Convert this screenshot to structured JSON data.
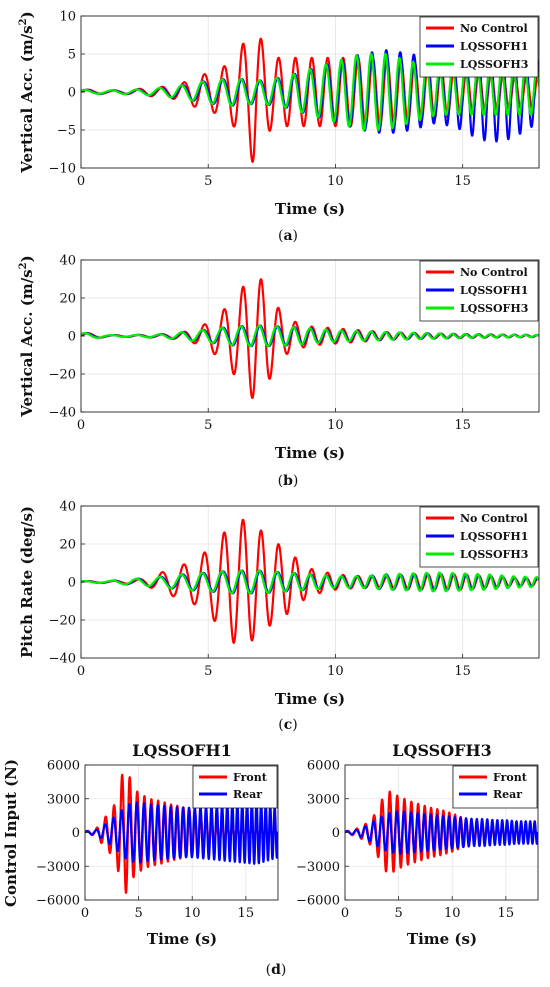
{
  "chart_data": [
    {
      "type": "line",
      "panel_label": "(a)",
      "title": "",
      "xlabel": "Time (s)",
      "ylabel": "Vertical Acc. (m/s²)",
      "xlim": [
        0,
        18
      ],
      "ylim": [
        -10,
        10
      ],
      "xticks": [
        0,
        5,
        10,
        15
      ],
      "yticks": [
        -10,
        -5,
        0,
        5,
        10
      ],
      "grid": true,
      "legend": "top-right",
      "series": [
        {
          "name": "No Control",
          "color": "#ff0000",
          "t": [
            0,
            0.5,
            1,
            1.5,
            2,
            2.5,
            3,
            3.5,
            4,
            4.5,
            5,
            5.5,
            6,
            6.3,
            6.6,
            6.8,
            7,
            7.3,
            7.6,
            8,
            9,
            10,
            11,
            12,
            13,
            14,
            15,
            16,
            17,
            18
          ],
          "amp": [
            0.3,
            0.3,
            0.2,
            0.2,
            0.3,
            0.5,
            0.6,
            0.8,
            1.2,
            2.0,
            2.5,
            3.0,
            4.5,
            6.0,
            7.5,
            10,
            7.5,
            5.5,
            4.5,
            4.5,
            4.5,
            4.5,
            4.5,
            4.5,
            4.0,
            3.5,
            3.0,
            2.5,
            2.2,
            2.0
          ]
        },
        {
          "name": "LQSSOFH1",
          "color": "#0000ff",
          "t": [
            0,
            1,
            2,
            3,
            4,
            5,
            6,
            7,
            8,
            9,
            10,
            11,
            12,
            13,
            14,
            15,
            15.5,
            16,
            16.5,
            17,
            18
          ],
          "amp": [
            0.3,
            0.2,
            0.3,
            0.5,
            0.9,
            1.5,
            1.8,
            1.5,
            2.0,
            3.0,
            4.0,
            5.0,
            5.5,
            5.0,
            4.0,
            5.0,
            6.0,
            6.5,
            6.5,
            6.0,
            4.0
          ]
        },
        {
          "name": "LQSSOFH3",
          "color": "#00ee00",
          "t": [
            0,
            1,
            2,
            3,
            4,
            5,
            6,
            7,
            8,
            9,
            10,
            11,
            12,
            13,
            14,
            15,
            16,
            17,
            18
          ],
          "amp": [
            0.3,
            0.2,
            0.3,
            0.5,
            0.9,
            1.5,
            1.8,
            1.5,
            2.0,
            3.0,
            4.0,
            5.0,
            5.0,
            4.0,
            3.0,
            3.0,
            3.0,
            3.0,
            3.0
          ]
        }
      ]
    },
    {
      "type": "line",
      "panel_label": "(b)",
      "title": "",
      "xlabel": "Time (s)",
      "ylabel": "Vertical Acc. (m/s²)",
      "xlim": [
        0,
        18
      ],
      "ylim": [
        -40,
        40
      ],
      "xticks": [
        0,
        5,
        10,
        15
      ],
      "yticks": [
        -40,
        -20,
        0,
        20,
        40
      ],
      "grid": true,
      "legend": "top-right",
      "series": [
        {
          "name": "No Control",
          "color": "#ff0000",
          "t": [
            0,
            0.3,
            1,
            2,
            3,
            3.5,
            4,
            4.5,
            5,
            5.5,
            6,
            6.5,
            6.8,
            7.2,
            7.6,
            8,
            8.5,
            9,
            10,
            11,
            12,
            13,
            15,
            18
          ],
          "amp": [
            1.5,
            1.5,
            0.5,
            0.5,
            0.8,
            1.2,
            2.0,
            4.0,
            7.0,
            12,
            20,
            28,
            34,
            28,
            18,
            10,
            7,
            5,
            4,
            3,
            2,
            1.5,
            1,
            0.5
          ]
        },
        {
          "name": "LQSSOFH1",
          "color": "#0000ff",
          "t": [
            0,
            0.3,
            1,
            2,
            3,
            4,
            5,
            6,
            7,
            8,
            9,
            10,
            12,
            15,
            18
          ],
          "amp": [
            1.5,
            1.5,
            0.5,
            0.5,
            0.8,
            2.0,
            3.5,
            5.0,
            5.5,
            5.0,
            4.0,
            3.0,
            2.0,
            1.0,
            0.5
          ]
        },
        {
          "name": "LQSSOFH3",
          "color": "#00ee00",
          "t": [
            0,
            0.3,
            1,
            2,
            3,
            4,
            5,
            6,
            7,
            8,
            9,
            10,
            12,
            15,
            18
          ],
          "amp": [
            1.5,
            1.5,
            0.5,
            0.5,
            0.8,
            2.0,
            3.5,
            5.0,
            5.5,
            5.0,
            4.0,
            3.0,
            2.0,
            1.0,
            0.5
          ]
        }
      ]
    },
    {
      "type": "line",
      "panel_label": "(c)",
      "title": "",
      "xlabel": "Time (s)",
      "ylabel": "Pitch Rate (deg/s)",
      "xlim": [
        0,
        18
      ],
      "ylim": [
        -40,
        40
      ],
      "xticks": [
        0,
        5,
        10,
        15
      ],
      "yticks": [
        -40,
        -20,
        0,
        20,
        40
      ],
      "grid": true,
      "legend": "top-right",
      "series": [
        {
          "name": "No Control",
          "color": "#ff0000",
          "t": [
            0,
            1,
            2,
            2.5,
            3,
            3.5,
            4,
            4.5,
            5,
            5.5,
            6,
            6.5,
            7,
            7.5,
            8,
            8.5,
            9,
            10,
            11,
            12,
            13,
            14,
            15,
            16,
            17,
            18
          ],
          "amp": [
            0.5,
            0.5,
            1.0,
            2.0,
            4.0,
            7.0,
            9.0,
            12,
            17,
            24,
            32,
            33,
            28,
            22,
            18,
            12,
            7,
            4,
            3,
            3,
            4,
            4,
            4,
            3,
            2,
            2
          ]
        },
        {
          "name": "LQSSOFH1",
          "color": "#0000ff",
          "t": [
            0,
            1,
            2,
            3,
            4,
            5,
            6,
            7,
            8,
            9,
            10,
            11,
            12,
            13,
            14,
            15,
            16,
            17,
            18
          ],
          "amp": [
            0.5,
            0.5,
            1.5,
            2.5,
            4.0,
            5.0,
            6.0,
            6.0,
            5.0,
            4.0,
            3.0,
            3.0,
            4.0,
            4.0,
            4.5,
            4.0,
            3.5,
            2.5,
            2.0
          ]
        },
        {
          "name": "LQSSOFH3",
          "color": "#00ee00",
          "t": [
            0,
            1,
            2,
            3,
            4,
            5,
            6,
            7,
            8,
            9,
            10,
            11,
            12,
            13,
            14,
            15,
            16,
            17,
            18
          ],
          "amp": [
            0.5,
            0.5,
            1.5,
            2.5,
            4.0,
            5.0,
            6.0,
            6.0,
            5.0,
            4.0,
            3.0,
            3.0,
            4.0,
            4.5,
            5.0,
            4.5,
            4.0,
            3.0,
            2.5
          ]
        }
      ]
    },
    {
      "type": "line",
      "panel_label": "(d)",
      "title": "LQSSOFH1",
      "xlabel": "Time (s)",
      "ylabel": "Control Input (N)",
      "xlim": [
        0,
        18
      ],
      "ylim": [
        -6000,
        6000
      ],
      "xticks": [
        0,
        5,
        10,
        15
      ],
      "yticks": [
        -6000,
        -3000,
        0,
        3000,
        6000
      ],
      "grid": true,
      "legend": "top-right",
      "series": [
        {
          "name": "Front",
          "color": "#ff0000",
          "t": [
            0,
            1,
            2,
            2.5,
            3,
            3.5,
            4,
            4.5,
            5,
            6,
            7,
            8,
            9,
            10,
            11,
            12,
            15,
            18
          ],
          "amp": [
            100,
            300,
            1500,
            2000,
            3000,
            5300,
            5400,
            4000,
            3500,
            3000,
            2800,
            2500,
            2300,
            2000,
            1500,
            800,
            300,
            100
          ]
        },
        {
          "name": "Rear",
          "color": "#0000ff",
          "t": [
            0,
            1,
            2,
            3,
            4,
            5,
            6,
            7,
            8,
            9,
            10,
            11,
            12,
            13,
            14,
            15,
            16,
            17,
            18
          ],
          "amp": [
            100,
            200,
            800,
            1600,
            2500,
            2700,
            2500,
            2400,
            2300,
            2200,
            2200,
            2300,
            2400,
            2500,
            2600,
            2700,
            2800,
            2500,
            2200
          ]
        }
      ]
    },
    {
      "type": "line",
      "panel_label": "(d)",
      "title": "LQSSOFH3",
      "xlabel": "Time (s)",
      "ylabel": "",
      "xlim": [
        0,
        18
      ],
      "ylim": [
        -6000,
        6000
      ],
      "xticks": [
        0,
        5,
        10,
        15
      ],
      "yticks": [
        -6000,
        -3000,
        0,
        3000,
        6000
      ],
      "grid": true,
      "legend": "top-right",
      "series": [
        {
          "name": "Front",
          "color": "#ff0000",
          "t": [
            0,
            1,
            2,
            2.5,
            3,
            3.5,
            4,
            4.5,
            5,
            6,
            7,
            8,
            9,
            10,
            11,
            12,
            15,
            18
          ],
          "amp": [
            100,
            300,
            800,
            1200,
            2000,
            3000,
            3700,
            3500,
            3200,
            2800,
            2500,
            2200,
            2000,
            1700,
            1300,
            800,
            300,
            100
          ]
        },
        {
          "name": "Rear",
          "color": "#0000ff",
          "t": [
            0,
            1,
            2,
            3,
            4,
            5,
            6,
            7,
            8,
            9,
            10,
            11,
            12,
            13,
            14,
            15,
            16,
            17,
            18
          ],
          "amp": [
            100,
            200,
            600,
            1200,
            1700,
            1900,
            1800,
            1700,
            1600,
            1500,
            1400,
            1300,
            1200,
            1200,
            1100,
            1100,
            1000,
            1000,
            1000
          ]
        }
      ]
    }
  ],
  "captions": {
    "a": {
      "pre": "(",
      "letter": "a",
      "post": ")"
    },
    "b": {
      "pre": "(",
      "letter": "b",
      "post": ")"
    },
    "c": {
      "pre": "(",
      "letter": "c",
      "post": ")"
    },
    "d": {
      "pre": "(",
      "letter": "d",
      "post": ")"
    }
  }
}
